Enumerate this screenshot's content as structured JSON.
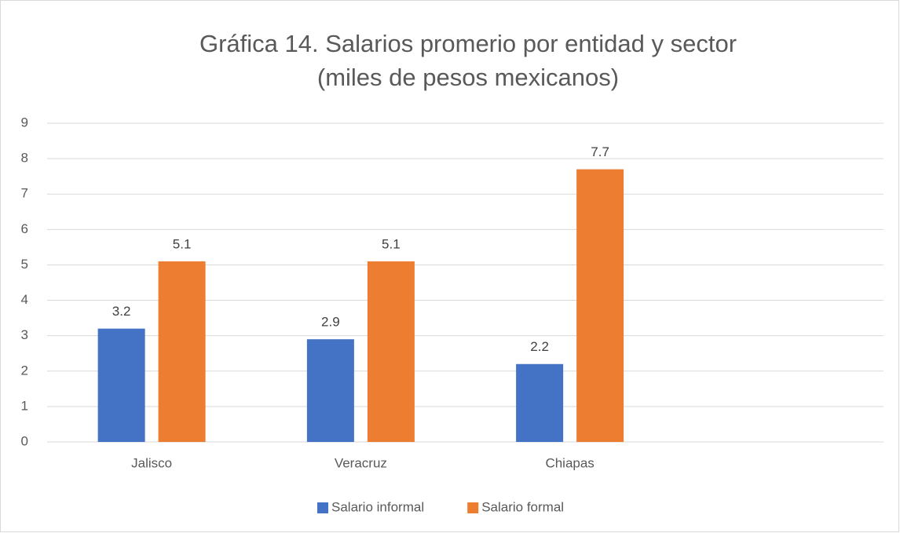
{
  "chart_data": {
    "type": "bar",
    "title": [
      "Gráfica 14. Salarios promerio por entidad y sector",
      "(miles de pesos mexicanos)"
    ],
    "categories": [
      "Jalisco",
      "Veracruz",
      "Chiapas",
      null
    ],
    "series": [
      {
        "name": "Salario informal",
        "color": "#4472c4",
        "values": [
          3.2,
          2.9,
          2.2,
          null
        ]
      },
      {
        "name": "Salario formal",
        "color": "#ed7d31",
        "values": [
          5.1,
          5.1,
          7.7,
          null
        ]
      }
    ],
    "ylim": [
      0,
      9
    ],
    "yticks": [
      0,
      1,
      2,
      3,
      4,
      5,
      6,
      7,
      8,
      9
    ],
    "grid": true,
    "data_labels": true,
    "legend": "bottom"
  }
}
